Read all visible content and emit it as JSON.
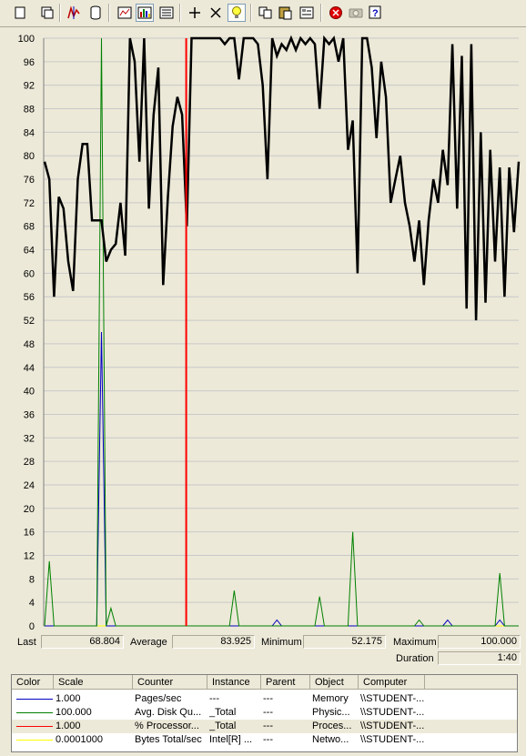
{
  "toolbar": {
    "buttons": [
      {
        "icon": "new-counter-set-icon"
      },
      {
        "icon": "clear-display-icon"
      },
      {
        "icon": "view-current-activity-icon"
      },
      {
        "icon": "view-log-data-icon"
      },
      {
        "icon": "view-graph-icon"
      },
      {
        "icon": "view-histogram-icon"
      },
      {
        "icon": "view-report-icon"
      },
      {
        "icon": "add-icon"
      },
      {
        "icon": "delete-icon"
      },
      {
        "icon": "highlight-icon"
      },
      {
        "icon": "copy-properties-icon"
      },
      {
        "icon": "paste-counter-list-icon"
      },
      {
        "icon": "properties-icon"
      },
      {
        "icon": "freeze-display-icon"
      },
      {
        "icon": "update-data-icon"
      },
      {
        "icon": "help-icon"
      }
    ]
  },
  "colors": {
    "background": "#ece9d8",
    "grid_line": "#c8c8c8",
    "series_black": "#000000",
    "series_green": "#008000",
    "series_blue": "#0000c0",
    "series_red": "#ff0000",
    "series_yellow": "#ffff00"
  },
  "chart_data": {
    "type": "line",
    "y_ticks": [
      "0",
      "4",
      "8",
      "12",
      "16",
      "20",
      "24",
      "28",
      "32",
      "36",
      "40",
      "44",
      "48",
      "52",
      "56",
      "60",
      "64",
      "68",
      "72",
      "76",
      "80",
      "84",
      "88",
      "92",
      "96",
      "100"
    ],
    "ylim": [
      0,
      100
    ],
    "grid": true,
    "time_bar_position": 0.3,
    "series": [
      {
        "color": "#000000",
        "values": [
          79,
          76,
          56,
          73,
          71,
          62,
          57,
          76,
          82,
          82,
          69,
          69,
          69,
          62,
          64,
          65,
          72,
          63,
          100,
          96,
          79,
          100,
          71,
          87,
          95,
          58,
          73,
          85,
          90,
          87,
          68,
          100,
          100,
          100,
          100,
          100,
          100,
          100,
          99,
          100,
          100,
          93,
          100,
          100,
          100,
          99,
          92,
          76,
          100,
          97,
          99,
          98,
          100,
          98,
          100,
          99,
          100,
          99,
          88,
          100,
          99,
          100,
          96,
          100,
          81,
          86,
          60,
          100,
          100,
          95,
          83,
          96,
          90,
          72,
          76,
          80,
          72,
          68,
          62,
          69,
          58,
          69,
          76,
          72,
          81,
          75,
          99,
          71,
          97,
          54,
          99,
          52,
          84,
          55,
          81,
          62,
          78,
          56,
          78,
          67,
          79
        ]
      },
      {
        "color": "#008000",
        "values": [
          0,
          11,
          0,
          0,
          0,
          0,
          0,
          0,
          0,
          0,
          0,
          0,
          100,
          0,
          3,
          0,
          0,
          0,
          0,
          0,
          0,
          0,
          0,
          0,
          0,
          0,
          0,
          0,
          0,
          0,
          0,
          0,
          0,
          0,
          0,
          0,
          0,
          0,
          0,
          0,
          6,
          0,
          0,
          0,
          0,
          0,
          0,
          0,
          0,
          0,
          0,
          0,
          0,
          0,
          0,
          0,
          0,
          0,
          5,
          0,
          0,
          0,
          0,
          0,
          0,
          16,
          0,
          0,
          0,
          0,
          0,
          0,
          0,
          0,
          0,
          0,
          0,
          0,
          0,
          1,
          0,
          0,
          0,
          0,
          0,
          0,
          0,
          0,
          0,
          0,
          0,
          0,
          0,
          0,
          0,
          0,
          9,
          0,
          0,
          0,
          0
        ]
      },
      {
        "color": "#0000c0",
        "values": [
          0,
          0,
          0,
          0,
          0,
          0,
          0,
          0,
          0,
          0,
          0,
          0,
          50,
          0,
          0,
          0,
          0,
          0,
          0,
          0,
          0,
          0,
          0,
          0,
          0,
          0,
          0,
          0,
          0,
          0,
          0,
          0,
          0,
          0,
          0,
          0,
          0,
          0,
          0,
          0,
          0,
          0,
          0,
          0,
          0,
          0,
          0,
          0,
          0,
          1,
          0,
          0,
          0,
          0,
          0,
          0,
          0,
          0,
          0,
          0,
          0,
          0,
          0,
          0,
          0,
          0,
          0,
          0,
          0,
          0,
          0,
          0,
          0,
          0,
          0,
          0,
          0,
          0,
          0,
          0,
          0,
          0,
          0,
          0,
          0,
          1,
          0,
          0,
          0,
          0,
          0,
          0,
          0,
          0,
          0,
          0,
          1,
          0,
          0,
          0,
          0
        ]
      },
      {
        "color": "#ffff00",
        "values": [
          0,
          0,
          0,
          0,
          0,
          0,
          0,
          0,
          0,
          0,
          0,
          0,
          0,
          0,
          0,
          0,
          0,
          0,
          0,
          0,
          0,
          0,
          0,
          0,
          0,
          0,
          0,
          0,
          0,
          0,
          0,
          0,
          0,
          0,
          0,
          0,
          0,
          0,
          0,
          0,
          0,
          0,
          0,
          0,
          0,
          0,
          0,
          0,
          0,
          0,
          0,
          0,
          0,
          0,
          0,
          0,
          0,
          0,
          0,
          0,
          0,
          0,
          0,
          0,
          0,
          0,
          0,
          0,
          0,
          0,
          0,
          0,
          0,
          0,
          0,
          0,
          0,
          0,
          0,
          0,
          0,
          0,
          0,
          0,
          0,
          0,
          0,
          0,
          0,
          0,
          0,
          0,
          0,
          0,
          0,
          0,
          0,
          0,
          0,
          0,
          0
        ]
      }
    ]
  },
  "stats": {
    "last_label": "Last",
    "last_value": "68.804",
    "average_label": "Average",
    "average_value": "83.925",
    "minimum_label": "Minimum",
    "minimum_value": "52.175",
    "maximum_label": "Maximum",
    "maximum_value": "100.000",
    "duration_label": "Duration",
    "duration_value": "1:40"
  },
  "legend": {
    "headers": [
      "Color",
      "Scale",
      "Counter",
      "Instance",
      "Parent",
      "Object",
      "Computer"
    ],
    "rows": [
      {
        "color": "#0000c0",
        "scale": "1.000",
        "counter": "Pages/sec",
        "instance": "---",
        "parent": "---",
        "object": "Memory",
        "computer": "\\\\STUDENT-..."
      },
      {
        "color": "#008000",
        "scale": "100.000",
        "counter": "Avg. Disk Qu...",
        "instance": "_Total",
        "parent": "---",
        "object": "Physic...",
        "computer": "\\\\STUDENT-..."
      },
      {
        "color": "#ff0000",
        "scale": "1.000",
        "counter": "% Processor...",
        "instance": "_Total",
        "parent": "---",
        "object": "Proces...",
        "computer": "\\\\STUDENT-..."
      },
      {
        "color": "#ffff00",
        "scale": "0.0001000",
        "counter": "Bytes Total/sec",
        "instance": "Intel[R] ...",
        "parent": "---",
        "object": "Netwo...",
        "computer": "\\\\STUDENT-..."
      }
    ]
  }
}
